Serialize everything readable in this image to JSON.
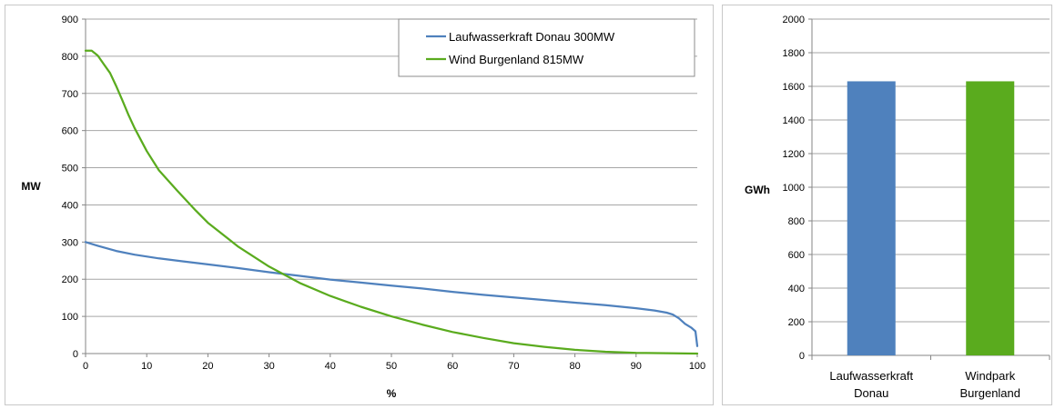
{
  "chart_data": [
    {
      "type": "line",
      "xlabel": "%",
      "ylabel": "MW",
      "xlim": [
        0,
        100
      ],
      "ylim": [
        0,
        900
      ],
      "x_ticks": [
        "0",
        "10",
        "20",
        "30",
        "40",
        "50",
        "60",
        "70",
        "80",
        "90",
        "100"
      ],
      "y_ticks": [
        "0",
        "100",
        "200",
        "300",
        "400",
        "500",
        "600",
        "700",
        "800",
        "900"
      ],
      "grid": true,
      "legend_position": "top-right",
      "series": [
        {
          "name": "Laufwasserkraft Donau 300MW",
          "color": "#4f81bd",
          "points": [
            [
              0,
              300
            ],
            [
              2,
              290
            ],
            [
              5,
              276
            ],
            [
              8,
              266
            ],
            [
              12,
              256
            ],
            [
              16,
              248
            ],
            [
              20,
              240
            ],
            [
              25,
              230
            ],
            [
              30,
              219
            ],
            [
              35,
              209
            ],
            [
              40,
              199
            ],
            [
              45,
              191
            ],
            [
              50,
              183
            ],
            [
              55,
              175
            ],
            [
              60,
              166
            ],
            [
              65,
              158
            ],
            [
              70,
              151
            ],
            [
              75,
              144
            ],
            [
              80,
              137
            ],
            [
              85,
              130
            ],
            [
              90,
              122
            ],
            [
              93,
              116
            ],
            [
              95,
              110
            ],
            [
              96,
              105
            ],
            [
              97,
              95
            ],
            [
              98,
              80
            ],
            [
              99,
              70
            ],
            [
              99.7,
              60
            ],
            [
              100,
              20
            ]
          ]
        },
        {
          "name": "Wind Burgenland 815MW",
          "color": "#5aab1e",
          "points": [
            [
              0,
              815
            ],
            [
              1,
              815
            ],
            [
              2,
              802
            ],
            [
              3,
              778
            ],
            [
              4,
              755
            ],
            [
              5,
              720
            ],
            [
              6,
              682
            ],
            [
              7,
              643
            ],
            [
              8,
              607
            ],
            [
              10,
              545
            ],
            [
              12,
              493
            ],
            [
              15,
              438
            ],
            [
              18,
              385
            ],
            [
              20,
              352
            ],
            [
              25,
              287
            ],
            [
              30,
              234
            ],
            [
              35,
              190
            ],
            [
              40,
              155
            ],
            [
              45,
              126
            ],
            [
              50,
              100
            ],
            [
              55,
              78
            ],
            [
              60,
              58
            ],
            [
              65,
              42
            ],
            [
              70,
              28
            ],
            [
              75,
              18
            ],
            [
              80,
              10
            ],
            [
              85,
              5
            ],
            [
              90,
              2
            ],
            [
              95,
              1
            ],
            [
              100,
              0
            ]
          ]
        }
      ]
    },
    {
      "type": "bar",
      "ylabel": "GWh",
      "ylim": [
        0,
        2000
      ],
      "y_ticks": [
        "0",
        "200",
        "400",
        "600",
        "800",
        "1000",
        "1200",
        "1400",
        "1600",
        "1800",
        "2000"
      ],
      "grid": true,
      "categories": [
        {
          "lines": [
            "Laufwasserkraft",
            "Donau"
          ],
          "value": 1630,
          "color": "#4f81bd"
        },
        {
          "lines": [
            "Windpark",
            "Burgenland"
          ],
          "value": 1630,
          "color": "#5aab1e"
        }
      ]
    }
  ]
}
